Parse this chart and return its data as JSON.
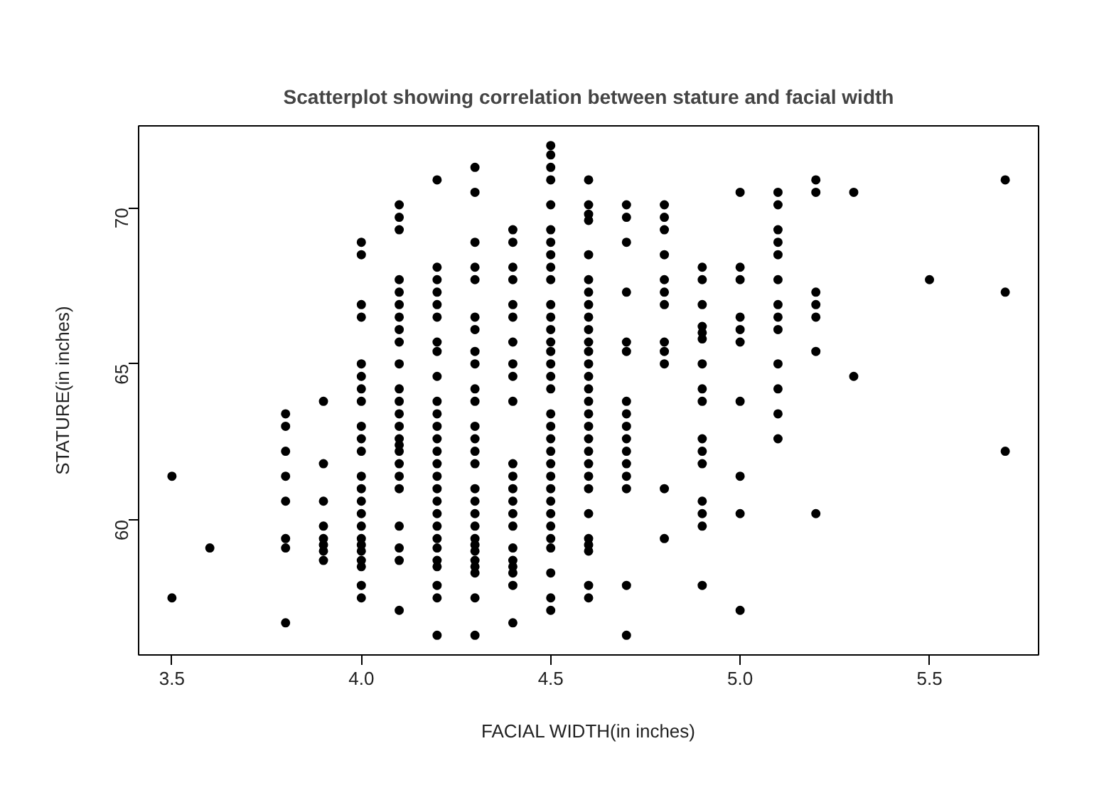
{
  "chart_data": {
    "type": "scatter",
    "title": "Scatterplot showing correlation between stature and facial width",
    "xlabel": "FACIAL WIDTH(in inches)",
    "ylabel": "STATURE(in inches)",
    "color": "#000000",
    "marker": "circle",
    "xlim": [
      3.412,
      5.788
    ],
    "ylim": [
      55.67,
      72.63
    ],
    "xticks": [
      3.5,
      {
        "value": 4,
        "label": "4.0"
      },
      4.5,
      {
        "value": 5,
        "label": "5.0"
      },
      5.5
    ],
    "yticks": [
      60,
      65,
      70
    ],
    "x": [
      3.5,
      3.5,
      3.6,
      3.8,
      3.8,
      3.8,
      3.8,
      3.8,
      3.8,
      3.8,
      3.8,
      3.9,
      3.9,
      3.9,
      3.9,
      3.9,
      3.9,
      3.9,
      3.9,
      4.0,
      4.0,
      4.0,
      4.0,
      4.0,
      4.0,
      4.0,
      4.0,
      4.0,
      4.0,
      4.0,
      4.0,
      4.0,
      4.0,
      4.0,
      4.0,
      4.0,
      4.0,
      4.0,
      4.0,
      4.0,
      4.0,
      4.0,
      4.1,
      4.1,
      4.1,
      4.1,
      4.1,
      4.1,
      4.1,
      4.1,
      4.1,
      4.1,
      4.1,
      4.1,
      4.1,
      4.1,
      4.1,
      4.1,
      4.1,
      4.1,
      4.1,
      4.1,
      4.1,
      4.1,
      4.1,
      4.1,
      4.2,
      4.2,
      4.2,
      4.2,
      4.2,
      4.2,
      4.2,
      4.2,
      4.2,
      4.2,
      4.2,
      4.2,
      4.2,
      4.2,
      4.2,
      4.2,
      4.2,
      4.2,
      4.2,
      4.2,
      4.2,
      4.2,
      4.2,
      4.2,
      4.2,
      4.2,
      4.2,
      4.3,
      4.3,
      4.3,
      4.3,
      4.3,
      4.3,
      4.3,
      4.3,
      4.3,
      4.3,
      4.3,
      4.3,
      4.3,
      4.3,
      4.3,
      4.3,
      4.3,
      4.3,
      4.3,
      4.3,
      4.3,
      4.3,
      4.3,
      4.3,
      4.3,
      4.3,
      4.3,
      4.4,
      4.4,
      4.4,
      4.4,
      4.4,
      4.4,
      4.4,
      4.4,
      4.4,
      4.4,
      4.4,
      4.4,
      4.4,
      4.4,
      4.4,
      4.4,
      4.4,
      4.4,
      4.4,
      4.4,
      4.4,
      4.4,
      4.5,
      4.5,
      4.5,
      4.5,
      4.5,
      4.5,
      4.5,
      4.5,
      4.5,
      4.5,
      4.5,
      4.5,
      4.5,
      4.5,
      4.5,
      4.5,
      4.5,
      4.5,
      4.5,
      4.5,
      4.5,
      4.5,
      4.5,
      4.5,
      4.5,
      4.5,
      4.5,
      4.5,
      4.5,
      4.5,
      4.5,
      4.5,
      4.5,
      4.6,
      4.6,
      4.6,
      4.6,
      4.6,
      4.6,
      4.6,
      4.6,
      4.6,
      4.6,
      4.6,
      4.6,
      4.6,
      4.6,
      4.6,
      4.6,
      4.6,
      4.6,
      4.6,
      4.6,
      4.6,
      4.6,
      4.6,
      4.6,
      4.6,
      4.6,
      4.6,
      4.6,
      4.6,
      4.7,
      4.7,
      4.7,
      4.7,
      4.7,
      4.7,
      4.7,
      4.7,
      4.7,
      4.7,
      4.7,
      4.7,
      4.7,
      4.7,
      4.7,
      4.7,
      4.8,
      4.8,
      4.8,
      4.8,
      4.8,
      4.8,
      4.8,
      4.8,
      4.8,
      4.8,
      4.8,
      4.8,
      4.9,
      4.9,
      4.9,
      4.9,
      4.9,
      4.9,
      4.9,
      4.9,
      4.9,
      4.9,
      4.9,
      4.9,
      4.9,
      4.9,
      4.9,
      4.9,
      5.0,
      5.0,
      5.0,
      5.0,
      5.0,
      5.0,
      5.0,
      5.0,
      5.0,
      5.0,
      5.1,
      5.1,
      5.1,
      5.1,
      5.1,
      5.1,
      5.1,
      5.1,
      5.1,
      5.1,
      5.1,
      5.1,
      5.1,
      5.2,
      5.2,
      5.2,
      5.2,
      5.2,
      5.2,
      5.2,
      5.3,
      5.3,
      5.5,
      5.7,
      5.7,
      5.7
    ],
    "values": [
      61.4,
      57.5,
      59.1,
      63.4,
      63.0,
      62.2,
      61.4,
      60.6,
      59.4,
      59.1,
      56.7,
      63.8,
      61.8,
      60.6,
      59.8,
      59.4,
      59.2,
      59.0,
      58.7,
      68.9,
      68.5,
      66.9,
      66.5,
      65.0,
      64.6,
      64.2,
      63.8,
      63.0,
      62.6,
      62.2,
      61.4,
      61.0,
      60.6,
      60.2,
      59.8,
      59.4,
      59.2,
      59.0,
      58.7,
      58.5,
      57.9,
      57.5,
      70.1,
      69.7,
      69.3,
      67.7,
      67.3,
      66.9,
      66.5,
      66.1,
      65.7,
      65.0,
      64.2,
      63.8,
      63.4,
      63.0,
      62.6,
      62.4,
      62.2,
      61.8,
      61.4,
      61.0,
      59.8,
      59.1,
      58.7,
      57.1,
      70.9,
      68.1,
      67.7,
      67.3,
      66.9,
      66.5,
      65.7,
      65.4,
      64.6,
      63.8,
      63.4,
      63.0,
      62.6,
      62.2,
      61.8,
      61.4,
      61.0,
      60.6,
      60.2,
      59.8,
      59.4,
      59.1,
      58.7,
      58.5,
      57.9,
      57.5,
      56.3,
      71.3,
      70.5,
      68.9,
      68.1,
      67.7,
      66.5,
      66.1,
      65.4,
      65.0,
      64.2,
      63.8,
      63.0,
      62.6,
      62.2,
      61.8,
      61.0,
      60.6,
      60.2,
      59.8,
      59.4,
      59.2,
      59.0,
      58.7,
      58.5,
      58.3,
      57.5,
      56.3,
      69.3,
      68.9,
      68.1,
      67.7,
      66.9,
      66.5,
      65.7,
      65.0,
      64.6,
      63.8,
      61.8,
      61.4,
      61.0,
      60.6,
      60.2,
      59.8,
      59.1,
      58.7,
      58.5,
      58.3,
      57.9,
      56.7,
      72.0,
      71.7,
      71.3,
      70.9,
      70.1,
      69.3,
      68.9,
      68.5,
      68.1,
      67.7,
      66.9,
      66.5,
      66.1,
      65.7,
      65.4,
      65.0,
      64.6,
      64.2,
      63.4,
      63.0,
      62.6,
      62.2,
      61.8,
      61.4,
      61.0,
      60.6,
      60.2,
      59.8,
      59.4,
      59.1,
      58.3,
      57.5,
      57.1,
      70.9,
      70.1,
      69.8,
      69.6,
      68.5,
      67.7,
      67.3,
      66.9,
      66.5,
      66.1,
      65.7,
      65.4,
      65.0,
      64.6,
      64.2,
      63.8,
      63.4,
      63.0,
      62.6,
      62.2,
      61.8,
      61.4,
      61.0,
      60.2,
      59.4,
      59.2,
      59.0,
      57.9,
      57.5,
      70.1,
      69.7,
      68.9,
      67.3,
      65.7,
      65.4,
      63.8,
      63.4,
      63.0,
      62.6,
      62.2,
      61.8,
      61.4,
      61.0,
      57.9,
      56.3,
      70.1,
      69.7,
      69.3,
      68.5,
      67.7,
      67.3,
      66.9,
      65.7,
      65.4,
      65.0,
      61.0,
      59.4,
      68.1,
      67.7,
      66.9,
      66.2,
      66.0,
      65.8,
      65.0,
      64.2,
      63.8,
      62.6,
      62.2,
      61.8,
      60.6,
      60.2,
      59.8,
      57.9,
      70.5,
      68.1,
      67.7,
      66.5,
      66.1,
      65.7,
      63.8,
      61.4,
      60.2,
      57.1,
      70.5,
      70.1,
      69.3,
      68.9,
      68.5,
      67.7,
      66.9,
      66.5,
      66.1,
      65.0,
      64.2,
      63.4,
      62.6,
      70.9,
      70.5,
      67.3,
      66.9,
      66.5,
      65.4,
      60.2,
      70.5,
      64.6,
      67.7,
      70.9,
      67.3,
      62.2
    ]
  }
}
